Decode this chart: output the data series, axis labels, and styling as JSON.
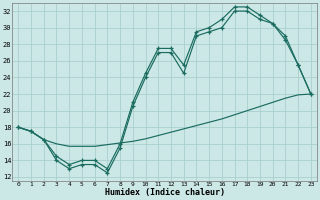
{
  "xlabel": "Humidex (Indice chaleur)",
  "bg_color": "#cce8e6",
  "grid_color": "#aacfcc",
  "line_color": "#1a6b60",
  "xlim": [
    -0.5,
    23.5
  ],
  "ylim": [
    11.5,
    33
  ],
  "xticks": [
    0,
    1,
    2,
    3,
    4,
    5,
    6,
    7,
    8,
    9,
    10,
    11,
    12,
    13,
    14,
    15,
    16,
    17,
    18,
    19,
    20,
    21,
    22,
    23
  ],
  "yticks": [
    12,
    14,
    16,
    18,
    20,
    22,
    24,
    26,
    28,
    30,
    32
  ],
  "curve1_x": [
    0,
    1,
    2,
    3,
    4,
    5,
    6,
    7,
    8,
    9,
    10,
    11,
    12,
    13,
    14,
    15,
    16,
    17,
    18,
    19,
    20,
    21,
    22,
    23
  ],
  "curve1_y": [
    18,
    17.5,
    16.5,
    14,
    13,
    13.5,
    13.5,
    12.5,
    15.5,
    20.5,
    24,
    27,
    27,
    24.5,
    29,
    29.5,
    30,
    32,
    32,
    31,
    30.5,
    28.5,
    25.5,
    22
  ],
  "curve2_x": [
    0,
    1,
    2,
    3,
    4,
    5,
    6,
    7,
    8,
    9,
    10,
    11,
    12,
    13,
    14,
    15,
    16,
    17,
    18,
    19,
    20,
    21,
    22,
    23
  ],
  "curve2_y": [
    18,
    17.5,
    16.5,
    14.5,
    13.5,
    14,
    14,
    13,
    16,
    21,
    24.5,
    27.5,
    27.5,
    25.5,
    29.5,
    30,
    31,
    32.5,
    32.5,
    31.5,
    30.5,
    29,
    25.5,
    22
  ],
  "curve3_x": [
    0,
    1,
    2,
    3,
    4,
    5,
    6,
    7,
    8,
    9,
    10,
    11,
    12,
    13,
    14,
    15,
    16,
    17,
    18,
    19,
    20,
    21,
    22,
    23
  ],
  "curve3_y": [
    18,
    17.5,
    16.5,
    16.0,
    15.7,
    15.7,
    15.7,
    15.9,
    16.1,
    16.3,
    16.6,
    17.0,
    17.4,
    17.8,
    18.2,
    18.6,
    19.0,
    19.5,
    20.0,
    20.5,
    21.0,
    21.5,
    21.9,
    22
  ]
}
